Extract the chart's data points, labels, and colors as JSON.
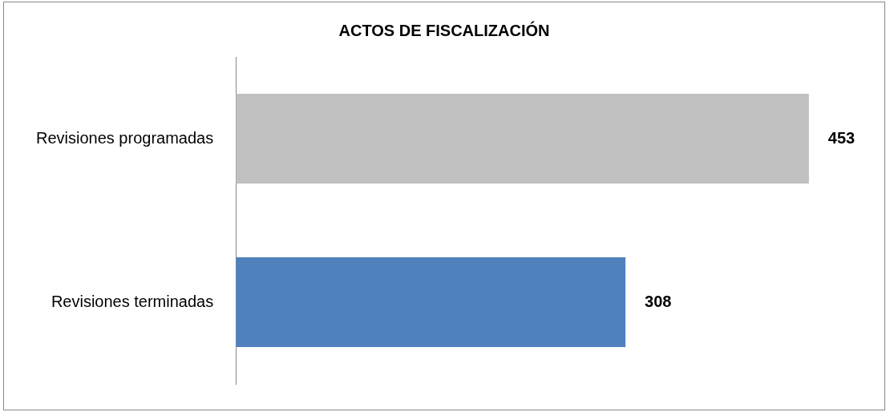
{
  "chart_data": {
    "type": "bar",
    "orientation": "horizontal",
    "title": "ACTOS DE FISCALIZACIÓN",
    "categories": [
      "Revisiones programadas",
      "Revisiones terminadas"
    ],
    "values": [
      453,
      308
    ],
    "colors": [
      "#c0c0c0",
      "#4f81bd"
    ],
    "data_labels": true,
    "grid": false,
    "legend": false
  }
}
